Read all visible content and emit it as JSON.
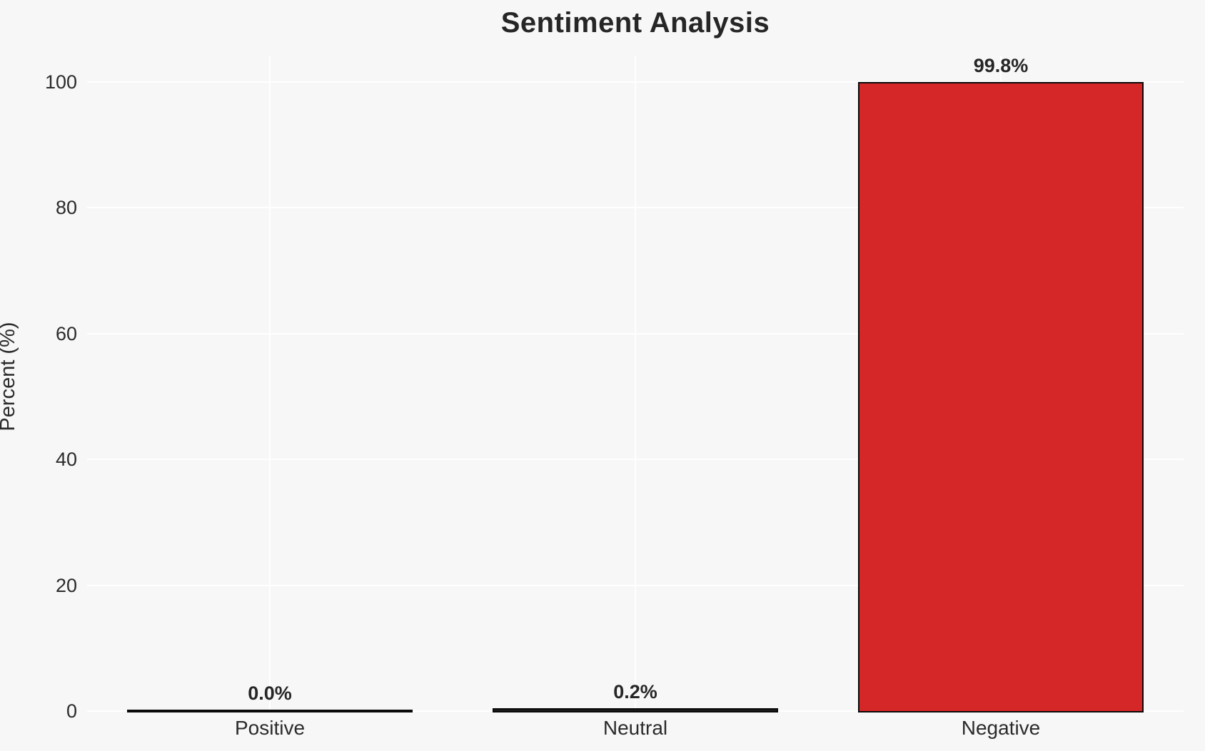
{
  "chart_data": {
    "type": "bar",
    "title": "Sentiment Analysis",
    "xlabel": "",
    "ylabel": "Percent (%)",
    "categories": [
      "Positive",
      "Neutral",
      "Negative"
    ],
    "values": [
      0.0,
      0.2,
      99.8
    ],
    "bar_labels": [
      "0.0%",
      "0.2%",
      "99.8%"
    ],
    "ylim": [
      0,
      104
    ],
    "yticks": [
      0,
      20,
      40,
      60,
      80,
      100
    ],
    "ytick_labels": [
      "0",
      "20",
      "40",
      "60",
      "80",
      "100"
    ],
    "grid": "on",
    "legend": "none",
    "bar_colors": [
      "#1a1a1a",
      "#1a1a1a",
      "#d62728"
    ],
    "bar_edge_color": "#0a0a0a",
    "background_color": "#f7f7f7",
    "gridline_color": "#ffffff",
    "title_color": "#262626",
    "text_color": "#2b2b2b"
  }
}
